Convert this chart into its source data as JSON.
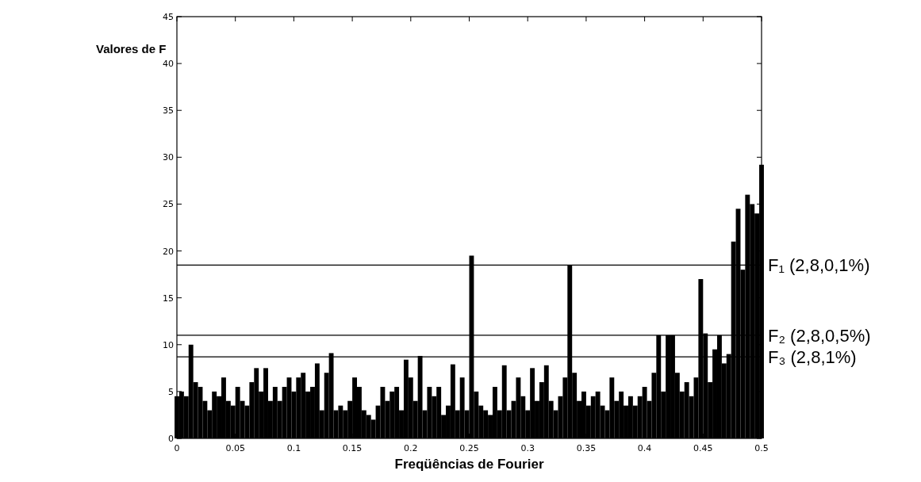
{
  "chart_data": {
    "type": "bar",
    "xlabel": "Freqüências de Fourier",
    "ylabel": "Valores de F",
    "x": [
      0,
      0.004,
      0.008,
      0.012,
      0.016,
      0.02,
      0.024,
      0.028,
      0.032,
      0.036,
      0.04,
      0.044,
      0.048,
      0.052,
      0.056,
      0.06,
      0.064,
      0.068,
      0.072,
      0.076,
      0.08,
      0.084,
      0.088,
      0.092,
      0.096,
      0.1,
      0.104,
      0.108,
      0.112,
      0.116,
      0.12,
      0.124,
      0.128,
      0.132,
      0.136,
      0.14,
      0.144,
      0.148,
      0.152,
      0.156,
      0.16,
      0.164,
      0.168,
      0.172,
      0.176,
      0.18,
      0.184,
      0.188,
      0.192,
      0.196,
      0.2,
      0.204,
      0.208,
      0.212,
      0.216,
      0.22,
      0.224,
      0.228,
      0.232,
      0.236,
      0.24,
      0.244,
      0.248,
      0.252,
      0.256,
      0.26,
      0.264,
      0.268,
      0.272,
      0.276,
      0.28,
      0.284,
      0.288,
      0.292,
      0.296,
      0.3,
      0.304,
      0.308,
      0.312,
      0.316,
      0.32,
      0.324,
      0.328,
      0.332,
      0.336,
      0.34,
      0.344,
      0.348,
      0.352,
      0.356,
      0.36,
      0.364,
      0.368,
      0.372,
      0.376,
      0.38,
      0.384,
      0.388,
      0.392,
      0.396,
      0.4,
      0.404,
      0.408,
      0.412,
      0.416,
      0.42,
      0.424,
      0.428,
      0.432,
      0.436,
      0.44,
      0.444,
      0.448,
      0.452,
      0.456,
      0.46,
      0.464,
      0.468,
      0.472,
      0.476,
      0.48,
      0.484,
      0.488,
      0.492,
      0.496,
      0.5
    ],
    "series": [
      {
        "color": "#000000",
        "values": [
          4.5,
          5,
          4.5,
          10,
          6,
          5.5,
          4,
          3,
          5,
          4.5,
          6.5,
          4,
          3.5,
          5.5,
          4,
          3.5,
          6,
          7.5,
          5,
          7.5,
          4,
          5.5,
          4,
          5.5,
          6.5,
          5,
          6.5,
          7,
          5,
          5.5,
          8,
          3,
          7,
          9.1,
          3,
          3.5,
          3,
          4,
          6.5,
          5.5,
          3,
          2.5,
          2,
          3.5,
          5.5,
          4,
          5,
          5.5,
          3,
          8.4,
          6.5,
          4,
          8.8,
          3,
          5.5,
          4.5,
          5.5,
          2.5,
          3.5,
          7.9,
          3,
          6.5,
          3,
          19.5,
          5,
          3.5,
          3,
          2.5,
          5.5,
          3,
          7.8,
          3,
          4,
          6.5,
          4.5,
          3,
          7.5,
          4,
          6,
          7.8,
          4,
          3,
          4.5,
          6.5,
          18.5,
          7,
          4,
          5,
          3.5,
          4.5,
          5,
          3.5,
          3,
          6.5,
          4,
          5,
          3.5,
          4.5,
          3.5,
          4.5,
          5.5,
          4,
          7,
          11,
          5,
          11,
          11,
          7,
          5,
          6,
          4.5,
          6.5,
          17,
          11.2,
          6,
          9.5,
          11,
          8,
          9,
          21,
          24.5,
          18,
          26,
          25,
          24,
          29.2
        ]
      }
    ],
    "xlim": [
      0,
      0.5
    ],
    "xticks": [
      0,
      0.05,
      0.1,
      0.15,
      0.2,
      0.25,
      0.3,
      0.35,
      0.4,
      0.45,
      0.5
    ],
    "ylim": [
      0,
      45
    ],
    "yticks": [
      0,
      5,
      10,
      15,
      20,
      25,
      30,
      35,
      40,
      45
    ],
    "ref_lines": [
      {
        "axis": "y",
        "value": 18.5,
        "label": "F₁ (2,8,0,1%)",
        "color": "#000000"
      },
      {
        "axis": "y",
        "value": 11,
        "label": "F₂ (2,8,0,5%)",
        "color": "#000000"
      },
      {
        "axis": "y",
        "value": 8.7,
        "label": "F₃ (2,8,1%)",
        "color": "#000000"
      }
    ]
  }
}
